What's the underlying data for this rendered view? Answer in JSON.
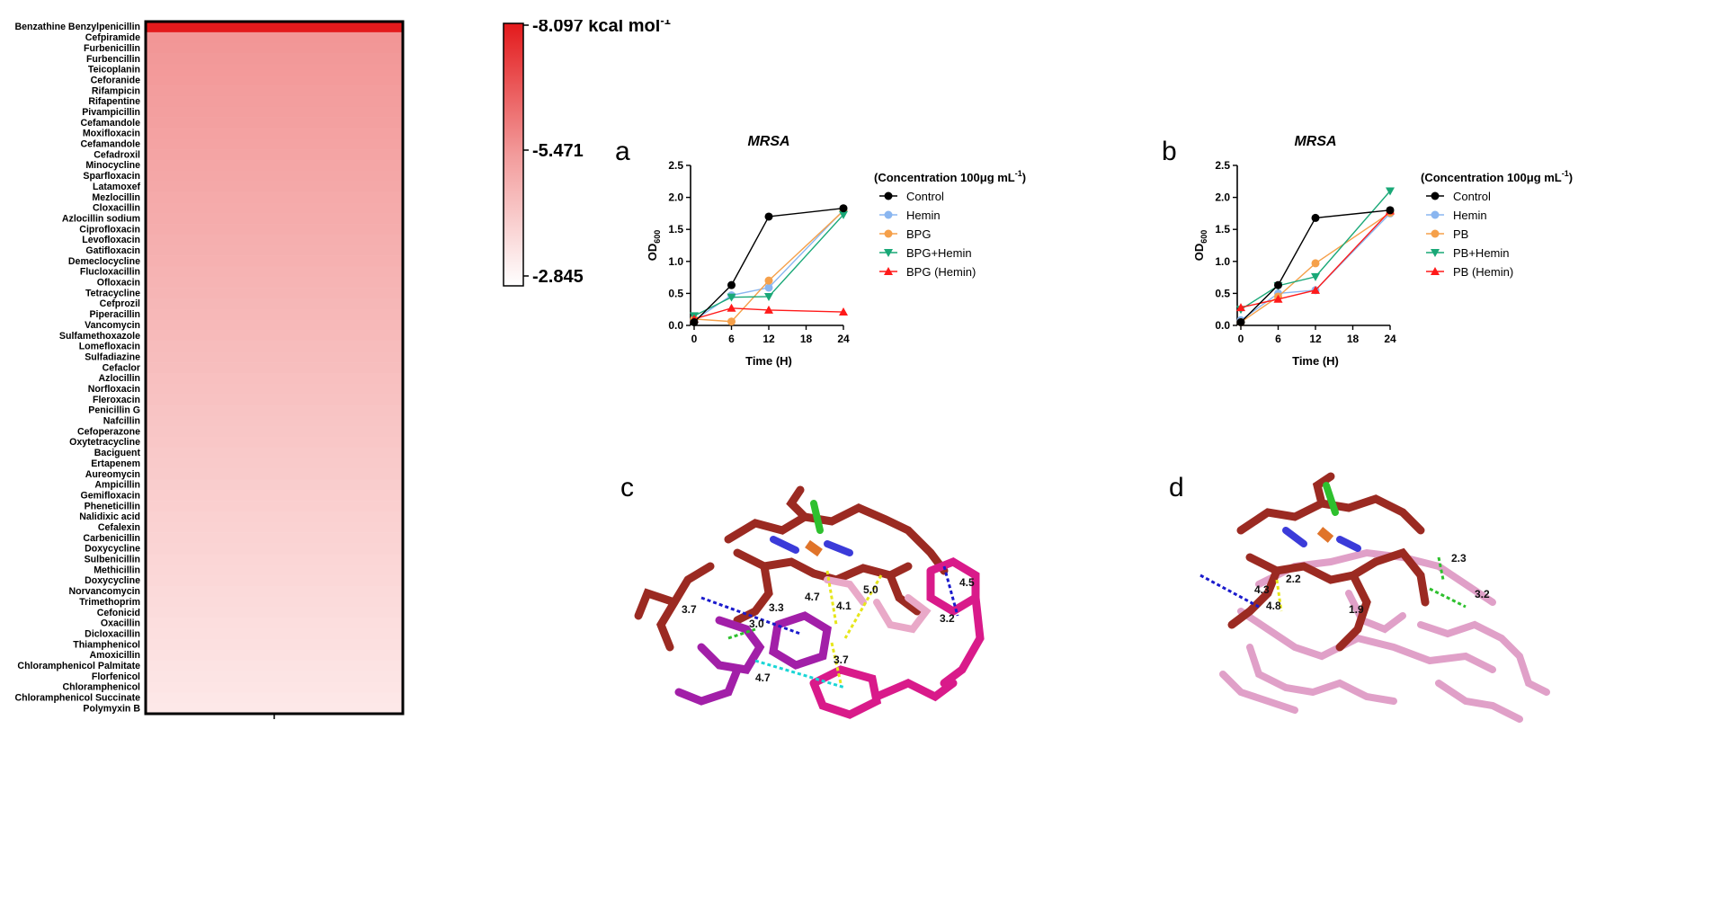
{
  "heatmap": {
    "drugs": [
      "Benzathine Benzylpenicillin",
      "Cefpiramide",
      "Furbenicillin",
      "Furbencillin",
      "Teicoplanin",
      "Ceforanide",
      "Rifampicin",
      "Rifapentine",
      "Pivampicillin",
      "Cefamandole",
      "Moxifloxacin",
      "Cefamandole",
      "Cefadroxil",
      "Minocycline",
      "Sparfloxacin",
      "Latamoxef",
      "Mezlocillin",
      "Cloxacillin",
      "Azlocillin sodium",
      "Ciprofloxacin",
      "Levofloxacin",
      "Gatifloxacin",
      "Demeclocycline",
      "Flucloxacillin",
      "Ofloxacin",
      "Tetracycline",
      "Cefprozil",
      "Piperacillin",
      "Vancomycin",
      "Sulfamethoxazole",
      "Lomefloxacin",
      "Sulfadiazine",
      "Cefaclor",
      "Azlocillin",
      "Norfloxacin",
      "Fleroxacin",
      "Penicillin G",
      "Nafcillin",
      "Cefoperazone",
      "Oxytetracycline",
      "Baciguent",
      "Ertapenem",
      "Aureomycin",
      "Ampicillin",
      "Gemifloxacin",
      "Pheneticillin",
      "Nalidixic acid",
      "Cefalexin",
      "Carbenicillin",
      "Doxycycline",
      "Sulbenicillin",
      "Methicillin",
      "Doxycycline",
      "Norvancomycin",
      "Trimethoprim",
      "Cefonicid",
      "Oxacillin",
      "Dicloxacillin",
      "Thiamphenicol",
      "Amoxicillin",
      "Chloramphenicol Palmitate",
      "Florfenicol",
      "Chloramphenicol",
      "Chloramphenicol Succinate",
      "Polymyxin B"
    ],
    "colorbar": {
      "max_label": "-8.097",
      "unit": "kcal mol",
      "unit_sup": "-1",
      "mid_label": "-5.471",
      "min_label": "-2.845",
      "color_max": "#e31a1c",
      "color_min": "#ffffff"
    }
  },
  "chart_data": [
    {
      "panel": "a",
      "type": "line",
      "title": "MRSA",
      "xlabel": "Time (H)",
      "ylabel": "OD",
      "ylabel_sub": "600",
      "x": [
        0,
        6,
        12,
        24
      ],
      "xticks": [
        "0",
        "6",
        "12",
        "18",
        "24"
      ],
      "xlim": [
        0,
        24
      ],
      "yticks": [
        "0.0",
        "0.5",
        "1.0",
        "1.5",
        "2.0",
        "2.5"
      ],
      "ylim": [
        0,
        2.5
      ],
      "legend_title": "(Concentration 100μg mL",
      "legend_title_sup": "-1",
      "legend_title_end": ")",
      "series": [
        {
          "name": "Control",
          "values": [
            0.05,
            0.63,
            1.7,
            1.83
          ],
          "color": "#000000",
          "marker": "circle"
        },
        {
          "name": "Hemin",
          "values": [
            0.08,
            0.47,
            0.59,
            1.8
          ],
          "color": "#8ab6f0",
          "marker": "circle"
        },
        {
          "name": "BPG",
          "values": [
            0.1,
            0.06,
            0.7,
            1.79
          ],
          "color": "#f5a04a",
          "marker": "circle"
        },
        {
          "name": "BPG+Hemin",
          "values": [
            0.15,
            0.44,
            0.45,
            1.73
          ],
          "color": "#19a877",
          "marker": "triangle-down"
        },
        {
          "name": "BPG (Hemin)",
          "values": [
            0.1,
            0.27,
            0.24,
            0.21
          ],
          "color": "#ff1a1a",
          "marker": "triangle-up"
        }
      ]
    },
    {
      "panel": "b",
      "type": "line",
      "title": "MRSA",
      "xlabel": "Time (H)",
      "ylabel": "OD",
      "ylabel_sub": "600",
      "x": [
        0,
        6,
        12,
        24
      ],
      "xticks": [
        "0",
        "6",
        "12",
        "18",
        "24"
      ],
      "xlim": [
        0,
        24
      ],
      "yticks": [
        "0.0",
        "0.5",
        "1.0",
        "1.5",
        "2.0",
        "2.5"
      ],
      "ylim": [
        0,
        2.5
      ],
      "legend_title": "(Concentration 100μg mL",
      "legend_title_sup": "-1",
      "legend_title_end": ")",
      "series": [
        {
          "name": "Control",
          "values": [
            0.05,
            0.63,
            1.68,
            1.8
          ],
          "color": "#000000",
          "marker": "circle"
        },
        {
          "name": "Hemin",
          "values": [
            0.08,
            0.5,
            0.55,
            1.75
          ],
          "color": "#8ab6f0",
          "marker": "circle"
        },
        {
          "name": "PB",
          "values": [
            0.05,
            0.45,
            0.97,
            1.76
          ],
          "color": "#f5a04a",
          "marker": "circle"
        },
        {
          "name": "PB+Hemin",
          "values": [
            0.25,
            0.62,
            0.76,
            2.1
          ],
          "color": "#19a877",
          "marker": "triangle-down"
        },
        {
          "name": "PB (Hemin)",
          "values": [
            0.28,
            0.41,
            0.55,
            1.79
          ],
          "color": "#ff1a1a",
          "marker": "triangle-up"
        }
      ]
    }
  ],
  "molecules": {
    "c": {
      "letter": "c",
      "distances": [
        "3.7",
        "3.3",
        "4.7",
        "4.1",
        "5.0",
        "4.5",
        "3.0",
        "3.7",
        "4.7",
        "3.2"
      ]
    },
    "d": {
      "letter": "d",
      "distances": [
        "2.3",
        "3.2",
        "1.9",
        "4.3",
        "2.2",
        "4.8"
      ]
    }
  }
}
